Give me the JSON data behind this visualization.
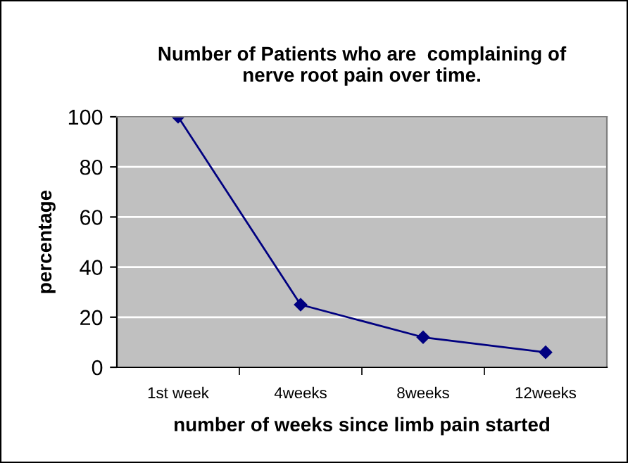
{
  "chart_data": {
    "type": "line",
    "title": "Number of Patients who are  complaining of\nnerve root pain over time.",
    "xlabel": "number of weeks since limb pain started",
    "ylabel": "percentage",
    "categories": [
      "1st week",
      "4weeks",
      "8weeks",
      "12weeks"
    ],
    "series": [
      {
        "color": "#000080",
        "values": [
          100,
          25,
          12,
          6
        ]
      }
    ],
    "ylim": [
      0,
      100
    ],
    "yticks": [
      0,
      20,
      40,
      60,
      80,
      100
    ],
    "grid": "y",
    "marker": "diamond",
    "line_style": "solid"
  }
}
